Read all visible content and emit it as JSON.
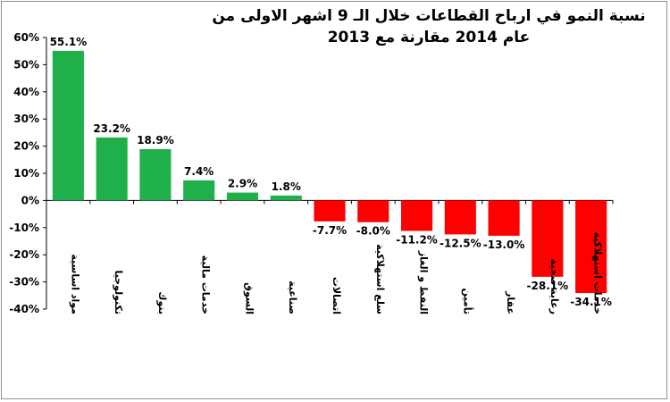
{
  "chart_data": {
    "type": "bar",
    "title": "نسبة النمو في ارباح القطاعات خلال الـ 9 اشهر الاولى من عام 2014 مقارنة مع 2013",
    "categories": [
      "مواد اساسية",
      "تكنولوجيا",
      "بنوك",
      "خدمات مالية",
      "السوق",
      "صناعية",
      "اتصالات",
      "سلع استهلاكية",
      "النفط و الغاز",
      "تأمين",
      "عقار",
      "رعاية صحية",
      "خدمات استهلاكية"
    ],
    "values": [
      55.1,
      23.2,
      18.9,
      7.4,
      2.9,
      1.8,
      -7.7,
      -8.0,
      -11.2,
      -12.5,
      -13.0,
      -28.1,
      -34.1
    ],
    "value_labels": [
      "55.1%",
      "23.2%",
      "18.9%",
      "7.4%",
      "2.9%",
      "1.8%",
      "-7.7%",
      "-8.0%",
      "-11.2%",
      "-12.5%",
      "-13.0%",
      "-28.1%",
      "-34.1%"
    ],
    "ylim": [
      -40,
      60
    ],
    "yticks": [
      -40,
      -30,
      -20,
      -10,
      0,
      10,
      20,
      30,
      40,
      50,
      60
    ],
    "ytick_labels": [
      "-40%",
      "-30%",
      "-20%",
      "-10%",
      "0%",
      "10%",
      "20%",
      "30%",
      "40%",
      "50%",
      "60%"
    ],
    "colors": {
      "positive": "#1fb04b",
      "negative": "#ff0000"
    },
    "grid": false,
    "legend": "none"
  }
}
